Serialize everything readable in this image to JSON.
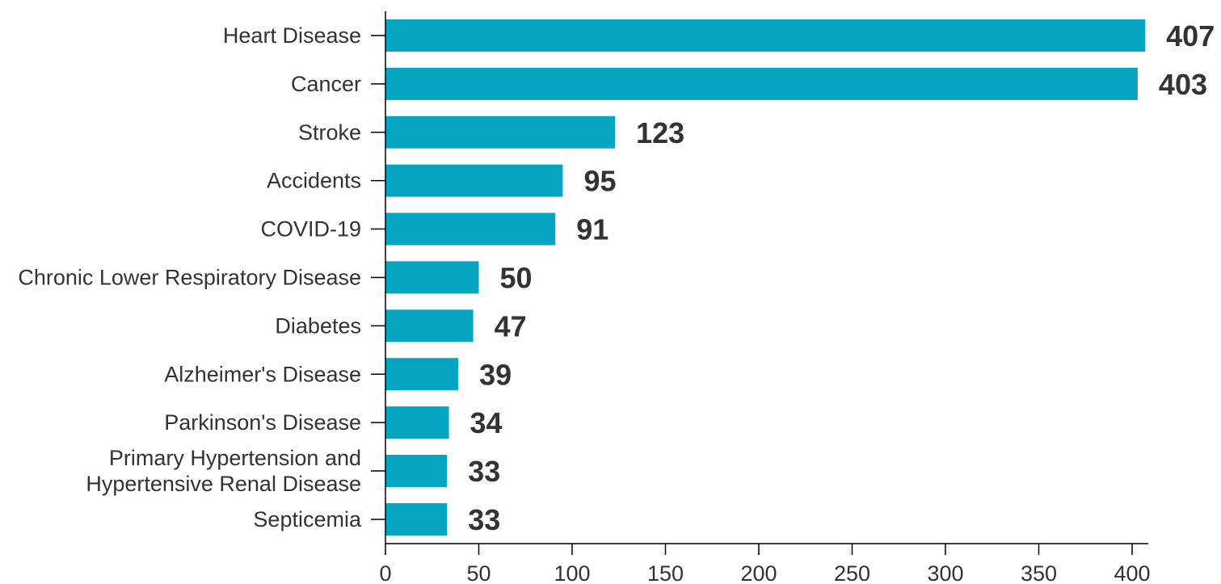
{
  "chart_data": {
    "type": "bar",
    "orientation": "horizontal",
    "title": "",
    "xlabel": "",
    "ylabel": "",
    "categories": [
      "Heart Disease",
      "Cancer",
      "Stroke",
      "Accidents",
      "COVID-19",
      "Chronic Lower Respiratory Disease",
      "Diabetes",
      "Alzheimer's Disease",
      "Parkinson's Disease",
      "Primary Hypertension and\nHypertensive Renal Disease",
      "Septicemia"
    ],
    "values": [
      407,
      403,
      123,
      95,
      91,
      50,
      47,
      39,
      34,
      33,
      33
    ],
    "value_labels": [
      "407",
      "403",
      "123",
      "95",
      "91",
      "50",
      "47",
      "39",
      "34",
      "33",
      "33"
    ],
    "xlim": [
      0,
      410
    ],
    "xticks": [
      0,
      50,
      100,
      150,
      200,
      250,
      300,
      350,
      400
    ],
    "xtick_labels": [
      "0",
      "50",
      "100",
      "150",
      "200",
      "250",
      "300",
      "350",
      "400"
    ],
    "grid": false,
    "legend": "none",
    "colors": {
      "bar": "#05a4c1",
      "text": "#333333",
      "axis": "#000000"
    }
  }
}
